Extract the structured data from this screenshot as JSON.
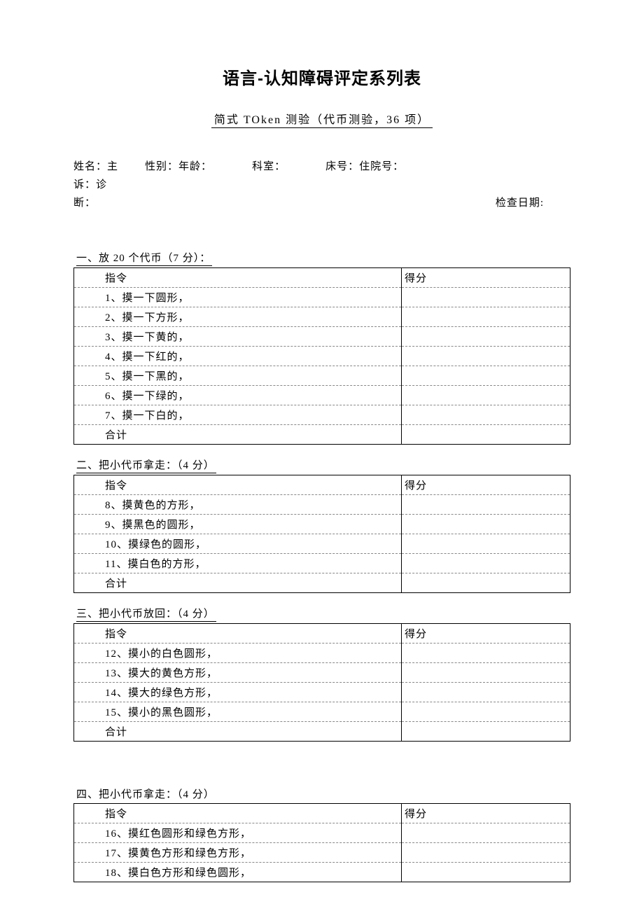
{
  "title": "语言-认知障碍评定系列表",
  "subtitle": "简式 TOken 测验（代币测验，36 项）",
  "info": {
    "name_label": "姓名：",
    "name_val": "主",
    "sex_label": "性别：",
    "age_label": "年龄：",
    "dept_label": "科室：",
    "bed_label": "床号：",
    "hosp_label": "住院号：",
    "chief_label": "诉：",
    "diag_label": "诊",
    "diag2_label": "断：",
    "date_label": "检查日期:"
  },
  "header_cmd": "指令",
  "header_score": "得分",
  "sum_label": "合计",
  "sections": [
    {
      "title": "一、放 20 个代币（7 分）：",
      "underline": true,
      "rows": [
        "1、摸一下圆形，",
        "2、摸一下方形，",
        "3、摸一下黄的，",
        "4、摸一下红的，",
        "5、摸一下黑的，",
        "6、摸一下绿的，",
        "7、摸一下白的，"
      ]
    },
    {
      "title": "二、把小代币拿走：（4 分）",
      "underline": true,
      "rows": [
        "8、摸黄色的方形，",
        "9、摸黑色的圆形，",
        "10、摸绿色的圆形，",
        "11、摸白色的方形，"
      ]
    },
    {
      "title": "三、把小代币放回：（4 分）",
      "underline": true,
      "rows": [
        "12、摸小的白色圆形，",
        "13、摸大的黄色方形，",
        "14、摸大的绿色方形，",
        "15、摸小的黑色圆形，"
      ]
    },
    {
      "title": "四、把小代币拿走：（4 分）",
      "underline": false,
      "gapBefore": true,
      "noSum": true,
      "rows": [
        "16、摸红色圆形和绿色方形，",
        "17、摸黄色方形和绿色方形，",
        "18、摸白色方形和绿色圆形，"
      ]
    }
  ]
}
